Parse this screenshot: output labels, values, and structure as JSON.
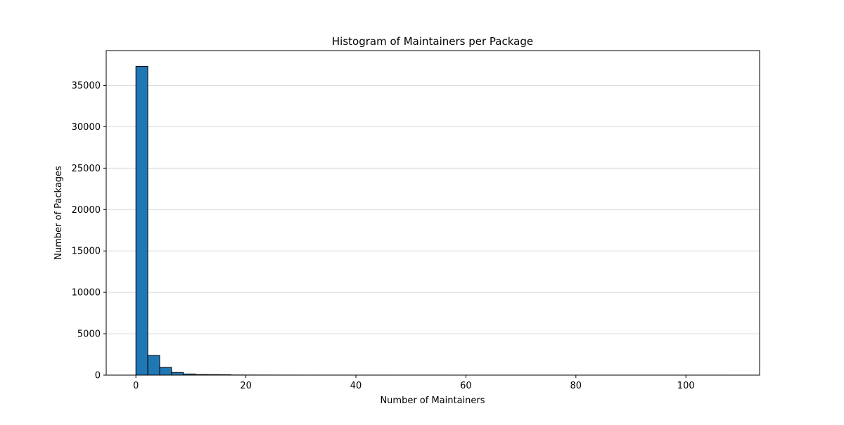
{
  "chart_data": {
    "type": "bar",
    "title": "Histogram of Maintainers per Package",
    "xlabel": "Number of Maintainers",
    "ylabel": "Number of Packages",
    "xlim": [
      -5.4,
      113.4
    ],
    "ylim": [
      0,
      39200
    ],
    "bin_range": [
      0,
      108
    ],
    "bins": 50,
    "xticks": [
      0,
      20,
      40,
      60,
      80,
      100
    ],
    "yticks": [
      0,
      5000,
      10000,
      15000,
      20000,
      25000,
      30000,
      35000
    ],
    "grid": "y",
    "bar_color": "#1f77b4",
    "edge_color": "#000000",
    "values": [
      37300,
      2380,
      930,
      320,
      140,
      70,
      60,
      50,
      20,
      15,
      12,
      10,
      8,
      6,
      5,
      5,
      4,
      4,
      3,
      3,
      3,
      2,
      2,
      2,
      2,
      2,
      1,
      1,
      1,
      1,
      1,
      1,
      1,
      1,
      1,
      1,
      1,
      1,
      1,
      1,
      1,
      1,
      1,
      1,
      1,
      1,
      1,
      1,
      1,
      1
    ]
  }
}
